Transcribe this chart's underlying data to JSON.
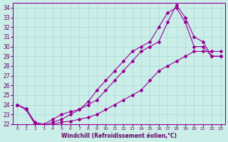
{
  "xlabel": "Windchill (Refroidissement éolien,°C)",
  "bg_color": "#cceee8",
  "grid_color": "#aadddd",
  "line_color": "#990099",
  "ylim": [
    22,
    34.5
  ],
  "xlim": [
    -0.5,
    23.5
  ],
  "yticks": [
    22,
    23,
    24,
    25,
    26,
    27,
    28,
    29,
    30,
    31,
    32,
    33,
    34
  ],
  "xticks": [
    0,
    1,
    2,
    3,
    4,
    5,
    6,
    7,
    8,
    9,
    10,
    11,
    12,
    13,
    14,
    15,
    16,
    17,
    18,
    19,
    20,
    21,
    22,
    23
  ],
  "series1": {
    "x": [
      0,
      1,
      2,
      3,
      4,
      5,
      6,
      7,
      8,
      9,
      10,
      11,
      12,
      13,
      14,
      15,
      16,
      17,
      18,
      19,
      20,
      21,
      22,
      23
    ],
    "y": [
      24.0,
      23.6,
      22.2,
      22.0,
      22.5,
      23.0,
      23.3,
      23.5,
      24.0,
      24.5,
      25.5,
      26.5,
      27.5,
      28.5,
      29.5,
      30.0,
      30.5,
      32.5,
      34.3,
      33.0,
      31.0,
      30.5,
      29.0,
      29.0
    ]
  },
  "series2": {
    "x": [
      0,
      1,
      2,
      3,
      4,
      5,
      6,
      7,
      8,
      9,
      10,
      11,
      12,
      13,
      14,
      15,
      16,
      17,
      18,
      19,
      20,
      21,
      22,
      23
    ],
    "y": [
      24.0,
      23.5,
      22.1,
      21.9,
      22.2,
      22.5,
      23.0,
      23.5,
      24.3,
      25.5,
      26.5,
      27.5,
      28.5,
      29.5,
      30.0,
      30.5,
      32.0,
      33.5,
      34.0,
      32.5,
      30.0,
      30.0,
      29.0,
      29.0
    ]
  },
  "series3": {
    "x": [
      0,
      1,
      2,
      3,
      4,
      5,
      6,
      7,
      8,
      9,
      10,
      11,
      12,
      13,
      14,
      15,
      16,
      17,
      18,
      19,
      20,
      21,
      22,
      23
    ],
    "y": [
      24.0,
      23.5,
      22.0,
      21.8,
      22.0,
      22.2,
      22.3,
      22.5,
      22.7,
      23.0,
      23.5,
      24.0,
      24.5,
      25.0,
      25.5,
      26.5,
      27.5,
      28.0,
      28.5,
      29.0,
      29.5,
      29.5,
      29.5,
      29.5
    ]
  }
}
